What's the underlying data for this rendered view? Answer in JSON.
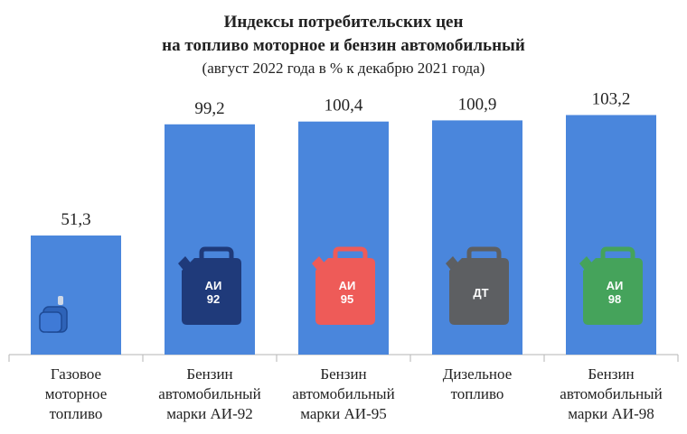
{
  "chart_data": {
    "type": "bar",
    "title": "Индексы потребительских цен",
    "title_line2": "на топливо моторное и бензин автомобильный",
    "subtitle": "(август 2022 года в % к декабрю 2021 года)",
    "categories": [
      [
        "Газовое",
        "моторное",
        "топливо"
      ],
      [
        "Бензин",
        "автомобильный",
        "марки АИ-92"
      ],
      [
        "Бензин",
        "автомобильный",
        "марки АИ-95"
      ],
      [
        "Дизельное",
        "топливо"
      ],
      [
        "Бензин",
        "автомобильный",
        "марки АИ-98"
      ]
    ],
    "values": [
      51.3,
      99.2,
      100.4,
      100.9,
      103.2
    ],
    "value_labels": [
      "51,3",
      "99,2",
      "100,4",
      "100,9",
      "103,2"
    ],
    "ylim": [
      0,
      110
    ],
    "bar_color": "#4a86dc",
    "grid": false,
    "icons": [
      {
        "name": "gas-cylinder-icon",
        "color": "#3a6fc4",
        "text": []
      },
      {
        "name": "jerrycan-ai92-icon",
        "color": "#1f3a7a",
        "text": [
          "АИ",
          "92"
        ]
      },
      {
        "name": "jerrycan-ai95-icon",
        "color": "#ee5b58",
        "text": [
          "АИ",
          "95"
        ]
      },
      {
        "name": "jerrycan-dt-icon",
        "color": "#5d5f62",
        "text": [
          "ДТ"
        ]
      },
      {
        "name": "jerrycan-ai98-icon",
        "color": "#45a35b",
        "text": [
          "АИ",
          "98"
        ]
      }
    ]
  }
}
